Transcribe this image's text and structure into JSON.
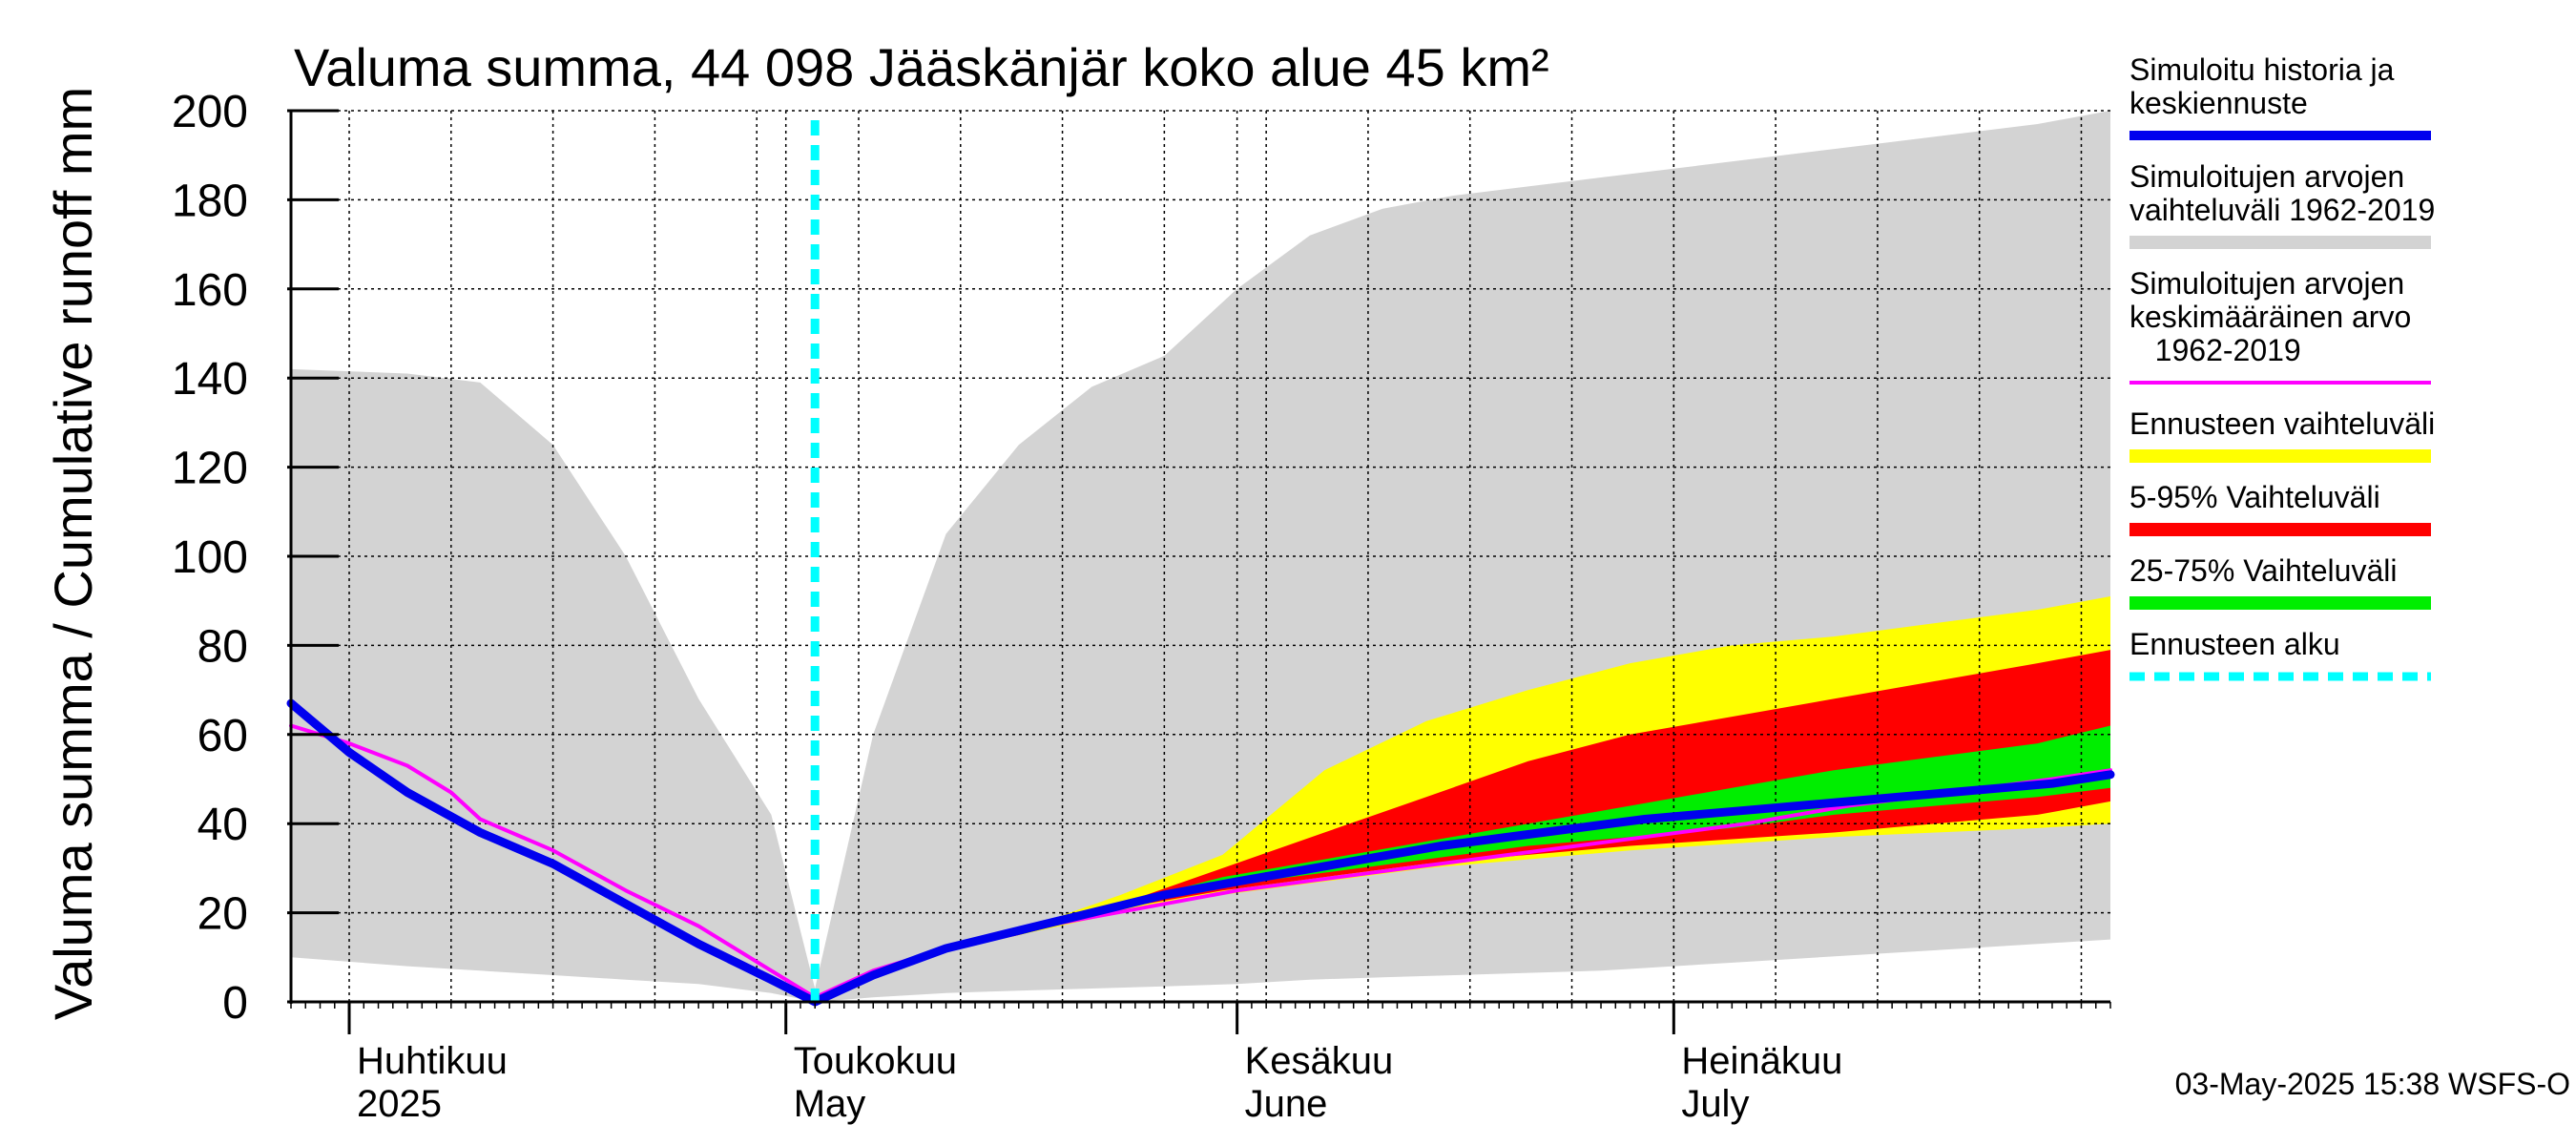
{
  "chart_data": {
    "type": "area",
    "title": "Valuma summa, 44 098 Jääskänjär koko alue 45 km²",
    "ylabel": "Valuma summa / Cumulative runoff    mm",
    "ylim": [
      0,
      200
    ],
    "yticks": [
      "0",
      "20",
      "40",
      "60",
      "80",
      "100",
      "120",
      "140",
      "160",
      "180",
      "200"
    ],
    "xlim": [
      "2025-03-28",
      "2025-07-31"
    ],
    "month_labels": [
      {
        "fi": "Huhtikuu",
        "en": "2025",
        "date": "2025-04-01"
      },
      {
        "fi": "Toukokuu",
        "en": "May",
        "date": "2025-05-01"
      },
      {
        "fi": "Kesäkuu",
        "en": "June",
        "date": "2025-06-01"
      },
      {
        "fi": "Heinäkuu",
        "en": "July",
        "date": "2025-07-01"
      }
    ],
    "forecast_start": "2025-05-03",
    "timestamp": "03-May-2025 15:38 WSFS-O",
    "colors": {
      "history_range": "#d3d3d3",
      "forecast_range": "#ffff00",
      "p5_95": "#ff0000",
      "p25_75": "#00ee00",
      "simulated": "#0000ee",
      "mean": "#ff00ff",
      "forecast_start": "#00ffff"
    },
    "legend": [
      {
        "key": "simulated",
        "label": "Simuloitu historia ja keskiennuste",
        "lines": [
          "Simuloitu historia ja",
          "keskiennuste"
        ],
        "style": "line"
      },
      {
        "key": "history_range",
        "label": "Simuloitujen arvojen vaihteluväli 1962-2019",
        "lines": [
          "Simuloitujen arvojen",
          "vaihteluväli 1962-2019"
        ],
        "style": "band"
      },
      {
        "key": "mean",
        "label": "Simuloitujen arvojen keskimääräinen arvo 1962-2019",
        "lines": [
          "Simuloitujen arvojen",
          "keskimääräinen arvo",
          "   1962-2019"
        ],
        "style": "thin"
      },
      {
        "key": "forecast_range",
        "label": "Ennusteen vaihteluväli",
        "lines": [
          "Ennusteen vaihteluväli"
        ],
        "style": "band"
      },
      {
        "key": "p5_95",
        "label": "5-95% Vaihteluväli",
        "lines": [
          "5-95% Vaihteluväli"
        ],
        "style": "band"
      },
      {
        "key": "p25_75",
        "label": "25-75% Vaihteluväli",
        "lines": [
          "25-75% Vaihteluväli"
        ],
        "style": "band"
      },
      {
        "key": "forecast_start",
        "label": "Ennusteen alku",
        "lines": [
          "Ennusteen alku"
        ],
        "style": "dashed"
      }
    ],
    "history_range": {
      "x": [
        "2025-03-28",
        "2025-04-05",
        "2025-04-10",
        "2025-04-15",
        "2025-04-20",
        "2025-04-25",
        "2025-04-30",
        "2025-05-03",
        "2025-05-07",
        "2025-05-12",
        "2025-05-17",
        "2025-05-22",
        "2025-05-27",
        "2025-06-01",
        "2025-06-06",
        "2025-06-11",
        "2025-06-16",
        "2025-06-21",
        "2025-06-26",
        "2025-07-01",
        "2025-07-06",
        "2025-07-11",
        "2025-07-16",
        "2025-07-21",
        "2025-07-26",
        "2025-07-31"
      ],
      "lower": [
        10,
        8,
        7,
        6,
        5,
        4,
        2,
        0,
        1,
        2,
        2.5,
        3,
        3.5,
        4,
        5,
        5.5,
        6,
        6.5,
        7,
        8,
        9,
        10,
        11,
        12,
        13,
        14
      ],
      "upper": [
        142,
        141,
        139,
        125,
        100,
        68,
        42,
        3,
        60,
        105,
        125,
        138,
        145,
        160,
        172,
        178,
        181,
        183,
        185,
        187,
        189,
        191,
        193,
        195,
        197,
        200
      ]
    },
    "forecast_range": {
      "x": [
        "2025-05-03",
        "2025-05-10",
        "2025-05-17",
        "2025-05-24",
        "2025-05-31",
        "2025-06-07",
        "2025-06-14",
        "2025-06-21",
        "2025-06-28",
        "2025-07-05",
        "2025-07-12",
        "2025-07-19",
        "2025-07-26",
        "2025-07-31"
      ],
      "lower": [
        0,
        10,
        15,
        20,
        24,
        27,
        30,
        32,
        34,
        35.5,
        37,
        38,
        39,
        40
      ],
      "upper": [
        0,
        10,
        16,
        24,
        33,
        52,
        63,
        70,
        76,
        80,
        82,
        85,
        88,
        91
      ]
    },
    "p5_95": {
      "x": [
        "2025-05-03",
        "2025-05-10",
        "2025-05-17",
        "2025-05-24",
        "2025-05-31",
        "2025-06-07",
        "2025-06-14",
        "2025-06-21",
        "2025-06-28",
        "2025-07-05",
        "2025-07-12",
        "2025-07-19",
        "2025-07-26",
        "2025-07-31"
      ],
      "lower": [
        0,
        10,
        15,
        21,
        25,
        28,
        31,
        33,
        35,
        36.5,
        38,
        40,
        42,
        45
      ],
      "upper": [
        0,
        10,
        15.5,
        22,
        30,
        38,
        46,
        54,
        60,
        64,
        68,
        72,
        76,
        79
      ]
    },
    "p25_75": {
      "x": [
        "2025-05-03",
        "2025-05-10",
        "2025-05-17",
        "2025-05-24",
        "2025-05-31",
        "2025-06-07",
        "2025-06-14",
        "2025-06-21",
        "2025-06-28",
        "2025-07-05",
        "2025-07-12",
        "2025-07-19",
        "2025-07-26",
        "2025-07-31"
      ],
      "lower": [
        0,
        10,
        15,
        21,
        26,
        29,
        32,
        35,
        37,
        39,
        42,
        44,
        46,
        48
      ],
      "upper": [
        0,
        10,
        15,
        22,
        28,
        32,
        36,
        40,
        44,
        48,
        52,
        55,
        58,
        62
      ]
    },
    "series": [
      {
        "key": "simulated",
        "x": [
          "2025-03-28",
          "2025-04-01",
          "2025-04-05",
          "2025-04-10",
          "2025-04-15",
          "2025-04-20",
          "2025-04-25",
          "2025-04-30",
          "2025-05-03",
          "2025-05-07",
          "2025-05-12",
          "2025-05-17",
          "2025-05-22",
          "2025-05-27",
          "2025-06-01",
          "2025-06-08",
          "2025-06-15",
          "2025-06-22",
          "2025-06-29",
          "2025-07-06",
          "2025-07-13",
          "2025-07-20",
          "2025-07-27",
          "2025-07-31"
        ],
        "y": [
          67,
          56,
          47,
          38,
          31,
          22,
          13,
          5,
          0,
          6,
          12,
          16,
          20,
          24,
          27,
          31,
          35,
          38,
          41,
          43,
          45,
          47,
          49,
          51
        ]
      },
      {
        "key": "mean",
        "x": [
          "2025-03-28",
          "2025-04-01",
          "2025-04-05",
          "2025-04-08",
          "2025-04-10",
          "2025-04-15",
          "2025-04-20",
          "2025-04-25",
          "2025-04-30",
          "2025-05-03",
          "2025-05-07",
          "2025-05-12",
          "2025-05-17",
          "2025-05-22",
          "2025-05-27",
          "2025-06-01",
          "2025-06-08",
          "2025-06-15",
          "2025-06-22",
          "2025-06-29",
          "2025-07-06",
          "2025-07-13",
          "2025-07-20",
          "2025-07-27",
          "2025-07-31"
        ],
        "y": [
          62,
          58,
          53,
          47,
          41,
          34,
          25,
          17,
          7,
          1,
          7,
          12,
          16,
          19,
          22,
          25,
          28,
          31,
          34,
          37,
          40,
          44,
          47,
          50,
          52
        ]
      }
    ]
  }
}
